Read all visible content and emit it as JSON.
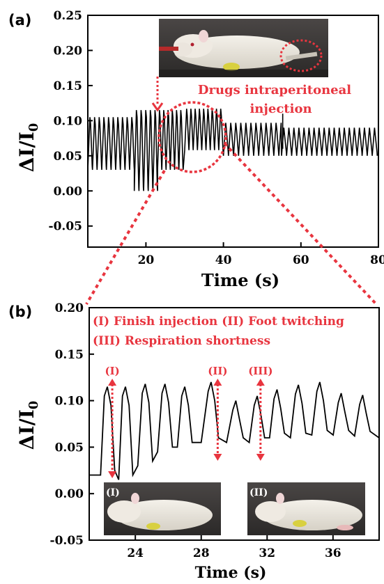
{
  "chart_data": [
    {
      "type": "line",
      "panel_label": "(a)",
      "xlabel": "Time (s)",
      "ylabel_main": "ΔI/I",
      "ylabel_sub": "0",
      "xlim": [
        5,
        80
      ],
      "ylim": [
        -0.08,
        0.25
      ],
      "xticks": [
        20,
        40,
        60,
        80
      ],
      "yticks": [
        0.25,
        0.2,
        0.15,
        0.1,
        0.05,
        0.0,
        -0.05
      ],
      "ytick_labels": [
        "0.25",
        "0.20",
        "0.15",
        "0.10",
        "0.05",
        "0.00",
        "-0.05"
      ],
      "annotation_lines": [
        "Drugs intraperitoneal",
        "injection"
      ],
      "photo_caption": "",
      "series": [
        {
          "segments": [
            {
              "from": 5,
              "to": 17,
              "period": 1.2,
              "high": 0.105,
              "low": 0.03
            },
            {
              "from": 17,
              "to": 23,
              "period": 1.2,
              "high": 0.115,
              "low": 0.0
            },
            {
              "from": 23,
              "to": 30,
              "period": 1.1,
              "high": 0.115,
              "low": 0.03
            },
            {
              "from": 30,
              "to": 40,
              "period": 1.1,
              "high": 0.117,
              "low": 0.058
            },
            {
              "from": 40,
              "to": 55,
              "period": 1.3,
              "high": 0.097,
              "low": 0.05
            },
            {
              "from": 55,
              "to": 80,
              "period": 1.3,
              "high": 0.09,
              "low": 0.05
            }
          ],
          "spikes": [
            {
              "x": 55.3,
              "y": 0.11
            }
          ]
        }
      ]
    },
    {
      "type": "line",
      "panel_label": "(b)",
      "xlabel": "Time (s)",
      "ylabel_main": "ΔI/I",
      "ylabel_sub": "0",
      "xlim": [
        21.2,
        38.8
      ],
      "ylim": [
        -0.05,
        0.2
      ],
      "xticks": [
        24,
        28,
        32,
        36
      ],
      "yticks": [
        0.2,
        0.15,
        0.1,
        0.05,
        0.0,
        -0.05
      ],
      "ytick_labels": [
        "0.20",
        "0.15",
        "0.10",
        "0.05",
        "0.00",
        "-0.05"
      ],
      "legend_lines": [
        "(I) Finish injection (II) Foot twitching",
        "(III) Respiration shortness"
      ],
      "markers": [
        {
          "label": "(I)",
          "x": 22.6
        },
        {
          "label": "(II)",
          "x": 29.0
        },
        {
          "label": "(III)",
          "x": 31.6
        }
      ],
      "photo_labels": [
        "(I)",
        "(II)"
      ],
      "series": [
        {
          "peaks": [
            {
              "x": 22.3,
              "y": 0.115,
              "base": 0.02
            },
            {
              "x": 23.4,
              "y": 0.115,
              "base": 0.015
            },
            {
              "x": 24.6,
              "y": 0.118,
              "base": 0.03
            },
            {
              "x": 25.8,
              "y": 0.118,
              "base": 0.045
            },
            {
              "x": 27.0,
              "y": 0.115,
              "base": 0.05
            },
            {
              "x": 28.6,
              "y": 0.12,
              "base": 0.055
            },
            {
              "x": 30.1,
              "y": 0.1,
              "base": 0.055
            },
            {
              "x": 31.4,
              "y": 0.105,
              "base": 0.055
            },
            {
              "x": 32.6,
              "y": 0.112,
              "base": 0.06
            },
            {
              "x": 33.9,
              "y": 0.117,
              "base": 0.06
            },
            {
              "x": 35.2,
              "y": 0.12,
              "base": 0.063
            },
            {
              "x": 36.5,
              "y": 0.108,
              "base": 0.063
            },
            {
              "x": 37.8,
              "y": 0.106,
              "base": 0.062
            }
          ]
        }
      ]
    }
  ]
}
